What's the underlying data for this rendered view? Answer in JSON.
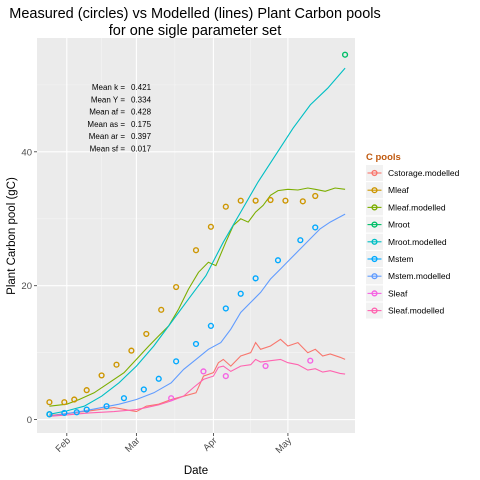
{
  "chart_data": {
    "type": "line",
    "title": "Measured (circles) vs Modelled (lines) Plant Carbon pools",
    "subtitle": "for one sigle parameter set",
    "xlabel": "Date",
    "ylabel": "Plant Carbon pool (gC)",
    "x_axis": {
      "type": "date",
      "range": [
        "2013-01-20",
        "2013-05-28"
      ],
      "ticks": [
        {
          "date": "2013-02-01",
          "label": "Feb"
        },
        {
          "date": "2013-03-01",
          "label": "Mar"
        },
        {
          "date": "2013-04-01",
          "label": "Apr"
        },
        {
          "date": "2013-05-01",
          "label": "May"
        }
      ]
    },
    "y_axis": {
      "range": [
        -2,
        57
      ],
      "ticks": [
        0,
        20,
        40
      ]
    },
    "grid": true,
    "legend": {
      "title": "C pools",
      "position": "right"
    },
    "annotation": [
      {
        "label": "Mean k =",
        "value": "0.421"
      },
      {
        "label": "Mean Y =",
        "value": "0.334"
      },
      {
        "label": "Mean af =",
        "value": "0.428"
      },
      {
        "label": "Mean as =",
        "value": "0.175"
      },
      {
        "label": "Mean ar =",
        "value": "0.397"
      },
      {
        "label": "Mean sf =",
        "value": "0.017"
      }
    ],
    "series": [
      {
        "name": "Cstorage.modelled",
        "color": "#F8766D",
        "kind": "line",
        "points": [
          [
            "2013-01-25",
            0.6
          ],
          [
            "2013-02-01",
            0.9
          ],
          [
            "2013-02-10",
            1.3
          ],
          [
            "2013-02-20",
            1.8
          ],
          [
            "2013-03-01",
            1.2
          ],
          [
            "2013-03-05",
            2.0
          ],
          [
            "2013-03-10",
            2.3
          ],
          [
            "2013-03-15",
            3.0
          ],
          [
            "2013-03-20",
            3.5
          ],
          [
            "2013-03-25",
            4.0
          ],
          [
            "2013-03-28",
            6.5
          ],
          [
            "2013-04-01",
            7.0
          ],
          [
            "2013-04-03",
            8.5
          ],
          [
            "2013-04-05",
            9.0
          ],
          [
            "2013-04-08",
            8.0
          ],
          [
            "2013-04-12",
            9.5
          ],
          [
            "2013-04-16",
            10.0
          ],
          [
            "2013-04-18",
            11.5
          ],
          [
            "2013-04-20",
            10.5
          ],
          [
            "2013-04-24",
            11.0
          ],
          [
            "2013-04-28",
            12.0
          ],
          [
            "2013-05-01",
            11.0
          ],
          [
            "2013-05-05",
            11.5
          ],
          [
            "2013-05-09",
            10.0
          ],
          [
            "2013-05-12",
            10.5
          ],
          [
            "2013-05-15",
            9.5
          ],
          [
            "2013-05-18",
            9.8
          ],
          [
            "2013-05-22",
            9.3
          ],
          [
            "2013-05-24",
            9.0
          ]
        ]
      },
      {
        "name": "Mleaf",
        "color": "#CD9600",
        "kind": "points",
        "points": [
          [
            "2013-01-25",
            2.6
          ],
          [
            "2013-01-31",
            2.6
          ],
          [
            "2013-02-04",
            3.0
          ],
          [
            "2013-02-09",
            4.4
          ],
          [
            "2013-02-15",
            6.6
          ],
          [
            "2013-02-21",
            8.2
          ],
          [
            "2013-02-27",
            10.3
          ],
          [
            "2013-03-05",
            12.8
          ],
          [
            "2013-03-11",
            16.4
          ],
          [
            "2013-03-17",
            19.8
          ],
          [
            "2013-03-25",
            25.3
          ],
          [
            "2013-03-31",
            28.8
          ],
          [
            "2013-04-06",
            31.8
          ],
          [
            "2013-04-12",
            32.7
          ],
          [
            "2013-04-18",
            32.7
          ],
          [
            "2013-04-24",
            32.8
          ],
          [
            "2013-04-30",
            32.7
          ],
          [
            "2013-05-07",
            32.6
          ],
          [
            "2013-05-12",
            33.4
          ]
        ]
      },
      {
        "name": "Mleaf.modelled",
        "color": "#7CAE00",
        "kind": "line",
        "points": [
          [
            "2013-01-25",
            2.0
          ],
          [
            "2013-02-01",
            2.3
          ],
          [
            "2013-02-06",
            3.0
          ],
          [
            "2013-02-12",
            4.0
          ],
          [
            "2013-02-18",
            5.5
          ],
          [
            "2013-02-24",
            7.0
          ],
          [
            "2013-03-01",
            9.0
          ],
          [
            "2013-03-06",
            11.0
          ],
          [
            "2013-03-10",
            12.5
          ],
          [
            "2013-03-14",
            14.0
          ],
          [
            "2013-03-18",
            16.5
          ],
          [
            "2013-03-22",
            19.5
          ],
          [
            "2013-03-26",
            22.0
          ],
          [
            "2013-03-30",
            23.5
          ],
          [
            "2013-04-02",
            23.0
          ],
          [
            "2013-04-06",
            26.5
          ],
          [
            "2013-04-09",
            29.0
          ],
          [
            "2013-04-12",
            30.0
          ],
          [
            "2013-04-15",
            29.5
          ],
          [
            "2013-04-18",
            31.0
          ],
          [
            "2013-04-21",
            32.0
          ],
          [
            "2013-04-24",
            33.5
          ],
          [
            "2013-04-27",
            34.2
          ],
          [
            "2013-05-01",
            34.4
          ],
          [
            "2013-05-05",
            34.3
          ],
          [
            "2013-05-09",
            34.6
          ],
          [
            "2013-05-12",
            34.4
          ],
          [
            "2013-05-16",
            34.1
          ],
          [
            "2013-05-20",
            34.6
          ],
          [
            "2013-05-24",
            34.4
          ]
        ]
      },
      {
        "name": "Mroot",
        "color": "#00BE67",
        "kind": "points",
        "points": [
          [
            "2013-01-25",
            0.8
          ],
          [
            "2013-05-24",
            54.5
          ]
        ]
      },
      {
        "name": "Mroot.modelled",
        "color": "#00BFC4",
        "kind": "line",
        "points": [
          [
            "2013-01-25",
            0.8
          ],
          [
            "2013-02-01",
            1.3
          ],
          [
            "2013-02-08",
            2.0
          ],
          [
            "2013-02-15",
            3.5
          ],
          [
            "2013-02-22",
            5.5
          ],
          [
            "2013-03-01",
            8.0
          ],
          [
            "2013-03-08",
            11.0
          ],
          [
            "2013-03-15",
            14.5
          ],
          [
            "2013-03-22",
            18.0
          ],
          [
            "2013-03-29",
            21.5
          ],
          [
            "2013-04-05",
            26.5
          ],
          [
            "2013-04-12",
            31.0
          ],
          [
            "2013-04-19",
            35.5
          ],
          [
            "2013-04-26",
            39.5
          ],
          [
            "2013-05-03",
            43.5
          ],
          [
            "2013-05-10",
            47.0
          ],
          [
            "2013-05-17",
            49.5
          ],
          [
            "2013-05-24",
            52.5
          ]
        ]
      },
      {
        "name": "Mstem",
        "color": "#00A9FF",
        "kind": "points",
        "points": [
          [
            "2013-01-25",
            0.8
          ],
          [
            "2013-01-31",
            1.0
          ],
          [
            "2013-02-05",
            1.1
          ],
          [
            "2013-02-09",
            1.5
          ],
          [
            "2013-02-17",
            2.0
          ],
          [
            "2013-02-24",
            3.2
          ],
          [
            "2013-03-04",
            4.5
          ],
          [
            "2013-03-10",
            6.1
          ],
          [
            "2013-03-17",
            8.7
          ],
          [
            "2013-03-25",
            11.3
          ],
          [
            "2013-03-31",
            14.0
          ],
          [
            "2013-04-06",
            16.6
          ],
          [
            "2013-04-12",
            18.8
          ],
          [
            "2013-04-18",
            21.1
          ],
          [
            "2013-04-27",
            23.8
          ],
          [
            "2013-05-06",
            26.8
          ],
          [
            "2013-05-12",
            28.7
          ]
        ]
      },
      {
        "name": "Mstem.modelled",
        "color": "#619CFF",
        "kind": "line",
        "points": [
          [
            "2013-01-25",
            0.5
          ],
          [
            "2013-02-01",
            0.9
          ],
          [
            "2013-02-08",
            1.3
          ],
          [
            "2013-02-15",
            1.8
          ],
          [
            "2013-02-22",
            2.3
          ],
          [
            "2013-03-01",
            3.0
          ],
          [
            "2013-03-08",
            4.0
          ],
          [
            "2013-03-15",
            5.5
          ],
          [
            "2013-03-20",
            7.5
          ],
          [
            "2013-03-25",
            9.0
          ],
          [
            "2013-03-30",
            10.5
          ],
          [
            "2013-04-04",
            11.5
          ],
          [
            "2013-04-08",
            13.5
          ],
          [
            "2013-04-12",
            16.0
          ],
          [
            "2013-04-16",
            17.5
          ],
          [
            "2013-04-20",
            19.0
          ],
          [
            "2013-04-24",
            21.0
          ],
          [
            "2013-04-28",
            22.5
          ],
          [
            "2013-05-02",
            24.0
          ],
          [
            "2013-05-06",
            25.5
          ],
          [
            "2013-05-10",
            27.0
          ],
          [
            "2013-05-14",
            28.5
          ],
          [
            "2013-05-18",
            29.5
          ],
          [
            "2013-05-24",
            30.7
          ]
        ]
      },
      {
        "name": "Sleaf",
        "color": "#F564E3",
        "kind": "points",
        "points": [
          [
            "2013-03-15",
            3.2
          ],
          [
            "2013-03-28",
            7.2
          ],
          [
            "2013-04-06",
            6.5
          ],
          [
            "2013-04-22",
            8.0
          ],
          [
            "2013-05-10",
            8.8
          ]
        ]
      },
      {
        "name": "Sleaf.modelled",
        "color": "#FF64B0",
        "kind": "line",
        "points": [
          [
            "2013-01-25",
            0.5
          ],
          [
            "2013-02-01",
            0.7
          ],
          [
            "2013-02-10",
            1.0
          ],
          [
            "2013-02-20",
            1.2
          ],
          [
            "2013-03-01",
            1.5
          ],
          [
            "2013-03-05",
            1.8
          ],
          [
            "2013-03-10",
            2.2
          ],
          [
            "2013-03-15",
            2.8
          ],
          [
            "2013-03-20",
            3.5
          ],
          [
            "2013-03-24",
            4.8
          ],
          [
            "2013-03-28",
            6.0
          ],
          [
            "2013-04-01",
            6.5
          ],
          [
            "2013-04-03",
            7.8
          ],
          [
            "2013-04-05",
            8.0
          ],
          [
            "2013-04-08",
            7.2
          ],
          [
            "2013-04-12",
            8.0
          ],
          [
            "2013-04-16",
            8.2
          ],
          [
            "2013-04-18",
            9.0
          ],
          [
            "2013-04-20",
            8.6
          ],
          [
            "2013-04-24",
            8.8
          ],
          [
            "2013-04-28",
            9.0
          ],
          [
            "2013-05-01",
            8.5
          ],
          [
            "2013-05-05",
            8.2
          ],
          [
            "2013-05-09",
            7.4
          ],
          [
            "2013-05-12",
            7.6
          ],
          [
            "2013-05-15",
            7.1
          ],
          [
            "2013-05-18",
            7.3
          ],
          [
            "2013-05-22",
            6.9
          ],
          [
            "2013-05-24",
            6.8
          ]
        ]
      }
    ]
  }
}
